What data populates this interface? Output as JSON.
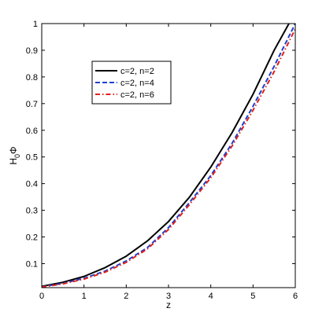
{
  "chart_data": {
    "type": "line",
    "title": "",
    "xlabel": "z",
    "ylabel": "H",
    "ylabel_sub": "0",
    "ylabel_tail": "Φ",
    "xlim": [
      0,
      6
    ],
    "ylim": [
      0.01,
      1
    ],
    "xticks": [
      0,
      1,
      2,
      3,
      4,
      5,
      6
    ],
    "yticks": [
      0.1,
      0.2,
      0.3,
      0.4,
      0.5,
      0.6,
      0.7,
      0.8,
      0.9,
      1
    ],
    "grid": false,
    "legend_position": "upper-left",
    "series": [
      {
        "name": "c=2, n=2",
        "color": "#000000",
        "style": "solid",
        "x": [
          0,
          0.5,
          1,
          1.5,
          2,
          2.5,
          3,
          3.5,
          4,
          4.5,
          5,
          5.5,
          5.85
        ],
        "y": [
          0.015,
          0.03,
          0.052,
          0.085,
          0.128,
          0.185,
          0.258,
          0.35,
          0.462,
          0.59,
          0.735,
          0.9,
          1.0
        ]
      },
      {
        "name": "c=2, n=4",
        "color": "#1f3fd0",
        "style": "dashed",
        "x": [
          0,
          0.5,
          1,
          1.5,
          2,
          2.5,
          3,
          3.5,
          4,
          4.5,
          5,
          5.5,
          6
        ],
        "y": [
          0.013,
          0.026,
          0.045,
          0.072,
          0.11,
          0.16,
          0.235,
          0.33,
          0.43,
          0.55,
          0.69,
          0.84,
          1.0
        ]
      },
      {
        "name": "c=2, n=6",
        "color": "#e0201a",
        "style": "dashdot",
        "x": [
          0,
          0.5,
          1,
          1.5,
          2,
          2.5,
          3,
          3.5,
          4,
          4.5,
          5,
          5.5,
          6
        ],
        "y": [
          0.012,
          0.024,
          0.042,
          0.068,
          0.105,
          0.155,
          0.228,
          0.322,
          0.422,
          0.54,
          0.675,
          0.82,
          0.98
        ]
      }
    ]
  }
}
